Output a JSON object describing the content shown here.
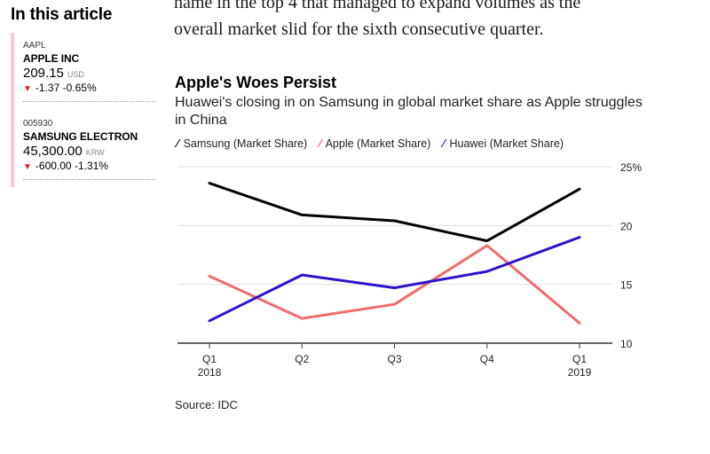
{
  "sidebar": {
    "title": "In this article",
    "quotes": [
      {
        "ticker": "AAPL",
        "name": "APPLE INC",
        "price": "209.15",
        "currency": "USD",
        "change": "-1.37",
        "change_pct": "-0.65%"
      },
      {
        "ticker": "005930",
        "name": "SAMSUNG ELECTRON",
        "price": "45,300.00",
        "currency": "KRW",
        "change": "-600.00",
        "change_pct": "-1.31%"
      }
    ]
  },
  "article": {
    "text_line1": "name in the top 4 that managed to expand volumes as the",
    "text_line2": "overall market slid for the sixth consecutive quarter."
  },
  "colors": {
    "samsung": "#000000",
    "apple": "#f36b6b",
    "huawei": "#2b14c9",
    "down_arrow": "#e3211c",
    "grid": "#dddddd"
  },
  "chart_data": {
    "type": "line",
    "title": "Apple's Woes Persist",
    "subtitle": "Huawei's closing in on Samsung in global market share as Apple struggles in China",
    "categories": [
      "Q1\n2018",
      "Q2",
      "Q3",
      "Q4",
      "Q1\n2019"
    ],
    "y_ticks": [
      "25%",
      "20",
      "15",
      "10"
    ],
    "ylim": [
      10,
      25
    ],
    "series": [
      {
        "name": "Samsung (Market Share)",
        "color": "#000000",
        "values": [
          23.6,
          20.9,
          20.4,
          18.7,
          23.1
        ]
      },
      {
        "name": "Apple (Market Share)",
        "color": "#f36b6b",
        "values": [
          15.7,
          12.1,
          13.3,
          18.3,
          11.7
        ]
      },
      {
        "name": "Huawei (Market Share)",
        "color": "#2b14c9",
        "values": [
          11.9,
          15.8,
          14.7,
          16.1,
          19.0
        ]
      }
    ],
    "source": "Source: IDC",
    "legend_position": "top-left"
  }
}
